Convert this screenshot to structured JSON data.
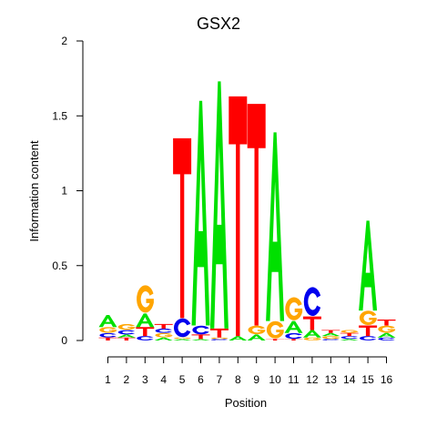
{
  "chart_data": {
    "type": "sequence-logo",
    "title": "GSX2",
    "xlabel": "Position",
    "ylabel": "Information content",
    "ylim": [
      0,
      2
    ],
    "yticks": [
      "0",
      "0.5",
      "1",
      "1.5",
      "2"
    ],
    "positions": [
      "1",
      "2",
      "3",
      "4",
      "5",
      "6",
      "7",
      "8",
      "9",
      "10",
      "11",
      "12",
      "13",
      "14",
      "15",
      "16"
    ],
    "colors": {
      "A": "#00e000",
      "C": "#0000ee",
      "G": "#ffa500",
      "T": "#ff0000"
    },
    "stacks": [
      [
        {
          "b": "T",
          "h": 0.02
        },
        {
          "b": "C",
          "h": 0.03
        },
        {
          "b": "G",
          "h": 0.04
        },
        {
          "b": "A",
          "h": 0.08
        }
      ],
      [
        {
          "b": "T",
          "h": 0.02
        },
        {
          "b": "A",
          "h": 0.02
        },
        {
          "b": "C",
          "h": 0.03
        },
        {
          "b": "G",
          "h": 0.04
        }
      ],
      [
        {
          "b": "C",
          "h": 0.03
        },
        {
          "b": "T",
          "h": 0.06
        },
        {
          "b": "A",
          "h": 0.09
        },
        {
          "b": "G",
          "h": 0.19
        }
      ],
      [
        {
          "b": "A",
          "h": 0.02
        },
        {
          "b": "G",
          "h": 0.03
        },
        {
          "b": "C",
          "h": 0.03
        },
        {
          "b": "T",
          "h": 0.03
        }
      ],
      [
        {
          "b": "A",
          "h": 0.01
        },
        {
          "b": "G",
          "h": 0.01
        },
        {
          "b": "C",
          "h": 0.13
        },
        {
          "b": "T",
          "h": 1.2
        }
      ],
      [
        {
          "b": "A",
          "h": 0.01
        },
        {
          "b": "T",
          "h": 0.03
        },
        {
          "b": "C",
          "h": 0.06
        },
        {
          "b": "A",
          "h": 1.5
        }
      ],
      [
        {
          "b": "C",
          "h": 0.01
        },
        {
          "b": "G",
          "h": 0.01
        },
        {
          "b": "T",
          "h": 0.06
        },
        {
          "b": "A",
          "h": 1.65
        }
      ],
      [
        {
          "b": "A",
          "h": 0.03
        },
        {
          "b": "T",
          "h": 1.6
        }
      ],
      [
        {
          "b": "A",
          "h": 0.04
        },
        {
          "b": "G",
          "h": 0.06
        },
        {
          "b": "T",
          "h": 1.48
        }
      ],
      [
        {
          "b": "T",
          "h": 0.01
        },
        {
          "b": "G",
          "h": 0.12
        },
        {
          "b": "A",
          "h": 1.26
        }
      ],
      [
        {
          "b": "T",
          "h": 0.01
        },
        {
          "b": "C",
          "h": 0.04
        },
        {
          "b": "A",
          "h": 0.08
        },
        {
          "b": "G",
          "h": 0.16
        }
      ],
      [
        {
          "b": "G",
          "h": 0.02
        },
        {
          "b": "A",
          "h": 0.05
        },
        {
          "b": "T",
          "h": 0.09
        },
        {
          "b": "C",
          "h": 0.2
        }
      ],
      [
        {
          "b": "C",
          "h": 0.01
        },
        {
          "b": "G",
          "h": 0.02
        },
        {
          "b": "A",
          "h": 0.02
        },
        {
          "b": "T",
          "h": 0.02
        }
      ],
      [
        {
          "b": "A",
          "h": 0.01
        },
        {
          "b": "C",
          "h": 0.02
        },
        {
          "b": "T",
          "h": 0.02
        },
        {
          "b": "G",
          "h": 0.02
        }
      ],
      [
        {
          "b": "C",
          "h": 0.03
        },
        {
          "b": "T",
          "h": 0.07
        },
        {
          "b": "G",
          "h": 0.1
        },
        {
          "b": "A",
          "h": 0.6
        }
      ],
      [
        {
          "b": "C",
          "h": 0.02
        },
        {
          "b": "A",
          "h": 0.03
        },
        {
          "b": "G",
          "h": 0.05
        },
        {
          "b": "T",
          "h": 0.04
        }
      ]
    ]
  }
}
